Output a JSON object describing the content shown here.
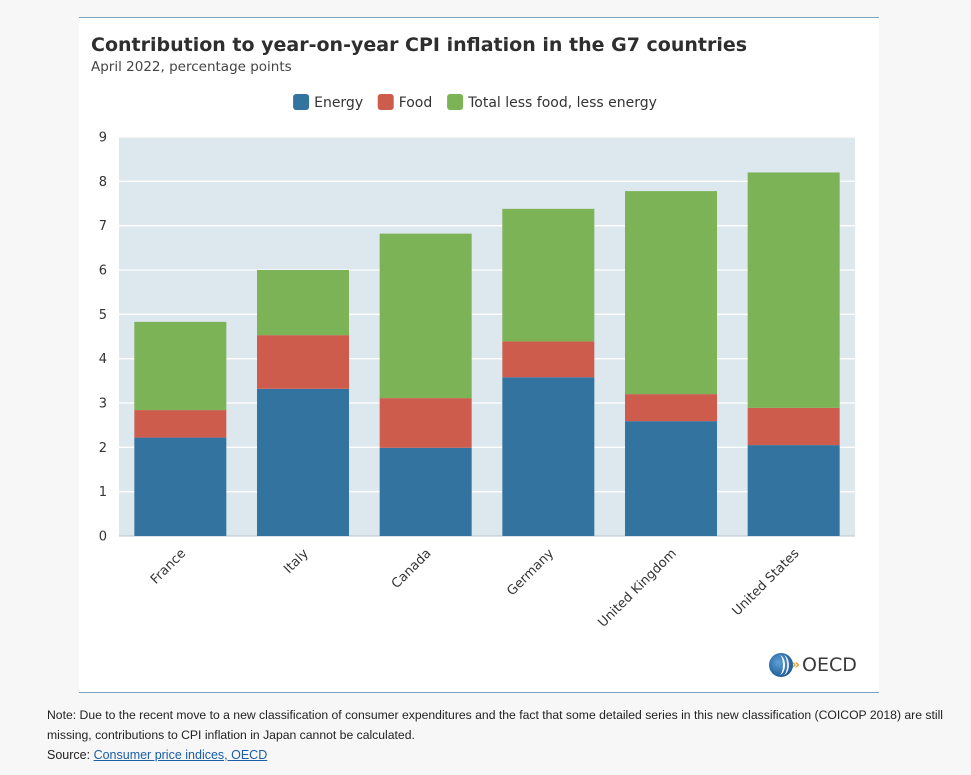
{
  "chart_data": {
    "type": "bar",
    "stacked": true,
    "title": "Contribution to year-on-year CPI inflation in the G7 countries",
    "subtitle": "April 2022, percentage points",
    "categories": [
      "France",
      "Italy",
      "Canada",
      "Germany",
      "United Kingdom",
      "United States"
    ],
    "series": [
      {
        "name": "Energy",
        "color": "#33739f",
        "values": [
          2.22,
          3.32,
          1.99,
          3.58,
          2.59,
          2.05
        ]
      },
      {
        "name": "Food",
        "color": "#cd5c4c",
        "values": [
          0.62,
          1.21,
          1.12,
          0.81,
          0.61,
          0.84
        ]
      },
      {
        "name": "Total less food, less energy",
        "color": "#7db357",
        "values": [
          1.99,
          1.47,
          3.71,
          2.99,
          4.58,
          5.31
        ]
      }
    ],
    "xlabel": "",
    "ylabel": "",
    "ylim": [
      0,
      9
    ],
    "yticks": [
      "0",
      "1",
      "2",
      "3",
      "4",
      "5",
      "6",
      "7",
      "8",
      "9"
    ],
    "grid": true,
    "legend_position": "top-center"
  },
  "brand": {
    "logo_text": "OECD"
  },
  "footer": {
    "note": "Note: Due to the recent move to a new classification of consumer expenditures and the fact that some detailed series in this new classification (COICOP 2018) are still missing, contributions to CPI inflation in Japan cannot be calculated.",
    "source_prefix": "Source: ",
    "source_link": "Consumer price indices, OECD"
  }
}
